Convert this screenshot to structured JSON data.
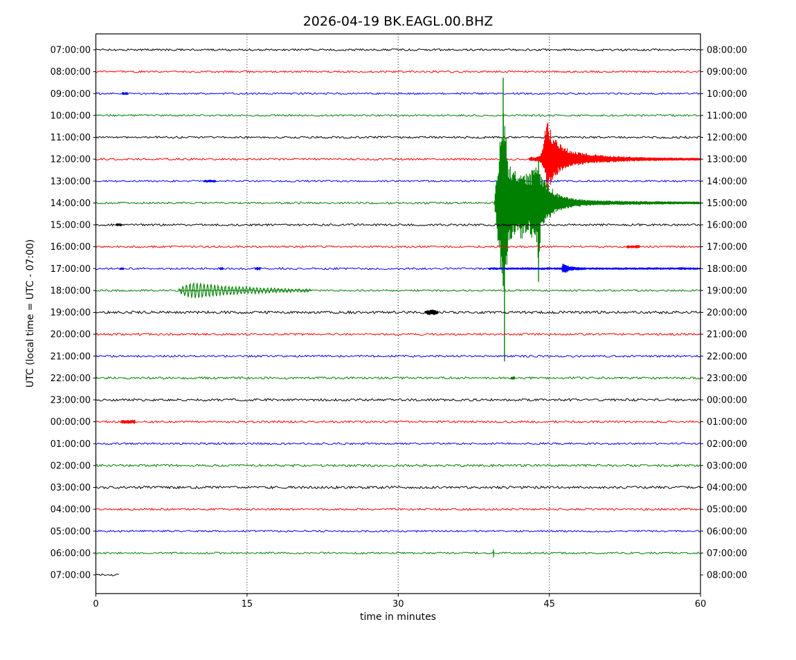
{
  "chart_data": {
    "type": "line",
    "variant": "helicorder-dayplot",
    "title": "2026-04-19 BK.EAGL.00.BHZ",
    "xlabel": "time in minutes",
    "ylabel": "UTC (local time = UTC - 07:00)",
    "x_ticks": [
      0,
      15,
      30,
      45,
      60
    ],
    "x_tick_labels": [
      "0",
      "15",
      "30",
      "45",
      "60"
    ],
    "x_range": [
      0,
      60
    ],
    "grid_minutes": [
      15,
      30,
      45
    ],
    "grid_style": "dotted",
    "trace_colors_cycle": [
      "#000000",
      "#ff0000",
      "#0000ff",
      "#008000"
    ],
    "rows": [
      {
        "start": "07:00:00",
        "end": "08:00:00",
        "noise": 1.4,
        "events": []
      },
      {
        "start": "08:00:00",
        "end": "09:00:00",
        "noise": 1.4,
        "events": []
      },
      {
        "start": "09:00:00",
        "end": "10:00:00",
        "noise": 1.3,
        "events": [
          {
            "kind": "blip",
            "from": 2.6,
            "to": 3.2,
            "amp": 2.2
          }
        ]
      },
      {
        "start": "10:00:00",
        "end": "11:00:00",
        "noise": 1.3,
        "events": []
      },
      {
        "start": "11:00:00",
        "end": "12:00:00",
        "noise": 1.5,
        "events": []
      },
      {
        "start": "12:00:00",
        "end": "13:00:00",
        "noise": 1.4,
        "events": [
          {
            "kind": "burst",
            "env": [
              [
                43.0,
                2,
                2
              ],
              [
                43.15,
                5,
                4
              ],
              [
                43.35,
                3,
                2.5
              ],
              [
                43.9,
                4,
                3.5
              ],
              [
                44.25,
                11,
                8
              ],
              [
                44.5,
                35,
                22
              ],
              [
                44.65,
                55,
                35
              ],
              [
                44.73,
                88,
                48
              ],
              [
                44.85,
                58,
                48
              ],
              [
                45.1,
                44,
                38
              ],
              [
                45.5,
                32,
                27
              ],
              [
                46.0,
                24,
                20
              ],
              [
                46.7,
                17,
                14
              ],
              [
                47.5,
                12,
                10
              ],
              [
                48.5,
                9,
                7.5
              ],
              [
                50,
                6.5,
                5.5
              ],
              [
                52,
                4.5,
                4
              ],
              [
                54,
                3.2,
                3
              ],
              [
                56.5,
                2.4,
                2.2
              ],
              [
                60,
                2,
                2
              ]
            ]
          }
        ]
      },
      {
        "start": "13:00:00",
        "end": "14:00:00",
        "noise": 1.3,
        "events": [
          {
            "kind": "blip",
            "from": 10.75,
            "to": 11.9,
            "amp": 2.2
          }
        ]
      },
      {
        "start": "14:00:00",
        "end": "15:00:00",
        "noise": 1.4,
        "events": [
          {
            "kind": "burst",
            "env": [
              [
                39.55,
                3,
                3
              ],
              [
                39.8,
                45,
                40
              ],
              [
                40.05,
                95,
                85
              ],
              [
                40.3,
                135,
                125
              ],
              [
                40.45,
                150,
                150
              ],
              [
                40.62,
                110,
                118
              ],
              [
                40.95,
                62,
                68
              ],
              [
                41.35,
                45,
                48
              ],
              [
                41.9,
                50,
                52
              ],
              [
                42.4,
                55,
                58
              ],
              [
                43.0,
                42,
                44
              ],
              [
                43.6,
                56,
                60
              ],
              [
                43.95,
                60,
                85
              ],
              [
                44.2,
                42,
                40
              ],
              [
                44.6,
                34,
                32
              ],
              [
                45.0,
                26,
                24
              ],
              [
                45.6,
                16,
                15
              ],
              [
                46.3,
                11,
                10
              ],
              [
                47.2,
                7,
                6.5
              ],
              [
                48.5,
                5,
                4.5
              ],
              [
                50,
                3.8,
                3.4
              ],
              [
                52.5,
                3,
                2.8
              ],
              [
                56,
                2.4,
                2.2
              ],
              [
                60,
                2,
                2
              ]
            ]
          },
          {
            "kind": "spike",
            "at": 40.42,
            "up": 181,
            "down": 120
          },
          {
            "kind": "spike",
            "at": 40.55,
            "up": 90,
            "down": 229
          },
          {
            "kind": "spike",
            "at": 43.93,
            "up": 62,
            "down": 114
          }
        ]
      },
      {
        "start": "15:00:00",
        "end": "16:00:00",
        "noise": 1.5,
        "events": [
          {
            "kind": "blip",
            "from": 2.0,
            "to": 2.6,
            "amp": 2.2
          }
        ]
      },
      {
        "start": "16:00:00",
        "end": "17:00:00",
        "noise": 1.4,
        "events": [
          {
            "kind": "blip",
            "from": 52.7,
            "to": 54.0,
            "amp": 2.4
          }
        ]
      },
      {
        "start": "17:00:00",
        "end": "18:00:00",
        "noise": 1.5,
        "events": [
          {
            "kind": "blip",
            "from": 2.4,
            "to": 2.8,
            "amp": 2.0
          },
          {
            "kind": "blip",
            "from": 12.3,
            "to": 12.7,
            "amp": 2.0
          },
          {
            "kind": "blip",
            "from": 15.8,
            "to": 16.3,
            "amp": 2.4
          },
          {
            "kind": "blip",
            "from": 39.0,
            "to": 60.0,
            "amp": 1.7
          },
          {
            "kind": "blip",
            "from": 57.8,
            "to": 58.4,
            "amp": 2.2
          },
          {
            "kind": "burst",
            "env": [
              [
                46.2,
                2
              ],
              [
                46.35,
                8
              ],
              [
                46.6,
                6.5
              ],
              [
                46.9,
                4.5
              ],
              [
                47.3,
                3
              ],
              [
                47.9,
                2.3
              ],
              [
                48.6,
                2
              ]
            ]
          }
        ]
      },
      {
        "start": "18:00:00",
        "end": "19:00:00",
        "noise": 1.3,
        "events": [
          {
            "kind": "wavepacket",
            "from": 8.2,
            "to": 21.4,
            "period": 0.35,
            "env": [
              [
                8.2,
                1.5
              ],
              [
                8.7,
                7
              ],
              [
                9.4,
                11
              ],
              [
                10.1,
                12
              ],
              [
                10.9,
                10
              ],
              [
                12,
                8
              ],
              [
                13,
                6.5
              ],
              [
                14,
                5.5
              ],
              [
                15.5,
                4.5
              ],
              [
                17,
                3.5
              ],
              [
                18.5,
                2.8
              ],
              [
                20,
                2.2
              ],
              [
                21.4,
                1.8
              ]
            ]
          }
        ]
      },
      {
        "start": "19:00:00",
        "end": "20:00:00",
        "noise": 1.9,
        "events": [
          {
            "kind": "burst",
            "env": [
              [
                32.7,
                2
              ],
              [
                33.0,
                4
              ],
              [
                33.6,
                4
              ],
              [
                34.0,
                2
              ]
            ]
          }
        ]
      },
      {
        "start": "20:00:00",
        "end": "21:00:00",
        "noise": 1.5,
        "events": []
      },
      {
        "start": "21:00:00",
        "end": "22:00:00",
        "noise": 1.4,
        "events": []
      },
      {
        "start": "22:00:00",
        "end": "23:00:00",
        "noise": 1.6,
        "events": [
          {
            "kind": "blip",
            "from": 41.2,
            "to": 41.6,
            "amp": 2.5
          }
        ]
      },
      {
        "start": "23:00:00",
        "end": "00:00:00",
        "noise": 1.7,
        "events": []
      },
      {
        "start": "00:00:00",
        "end": "01:00:00",
        "noise": 1.5,
        "events": [
          {
            "kind": "blip",
            "from": 2.5,
            "to": 3.9,
            "amp": 3.0
          }
        ]
      },
      {
        "start": "01:00:00",
        "end": "02:00:00",
        "noise": 1.4,
        "events": []
      },
      {
        "start": "02:00:00",
        "end": "03:00:00",
        "noise": 1.7,
        "events": []
      },
      {
        "start": "03:00:00",
        "end": "04:00:00",
        "noise": 1.8,
        "events": []
      },
      {
        "start": "04:00:00",
        "end": "05:00:00",
        "noise": 1.4,
        "events": []
      },
      {
        "start": "05:00:00",
        "end": "06:00:00",
        "noise": 1.3,
        "events": []
      },
      {
        "start": "06:00:00",
        "end": "07:00:00",
        "noise": 1.4,
        "events": [
          {
            "kind": "spike",
            "at": 39.46,
            "up": 5,
            "down": 6
          }
        ]
      },
      {
        "start": "07:00:00",
        "end": "08:00:00",
        "noise": 1.5,
        "end_min": 2.3,
        "events": []
      }
    ]
  }
}
